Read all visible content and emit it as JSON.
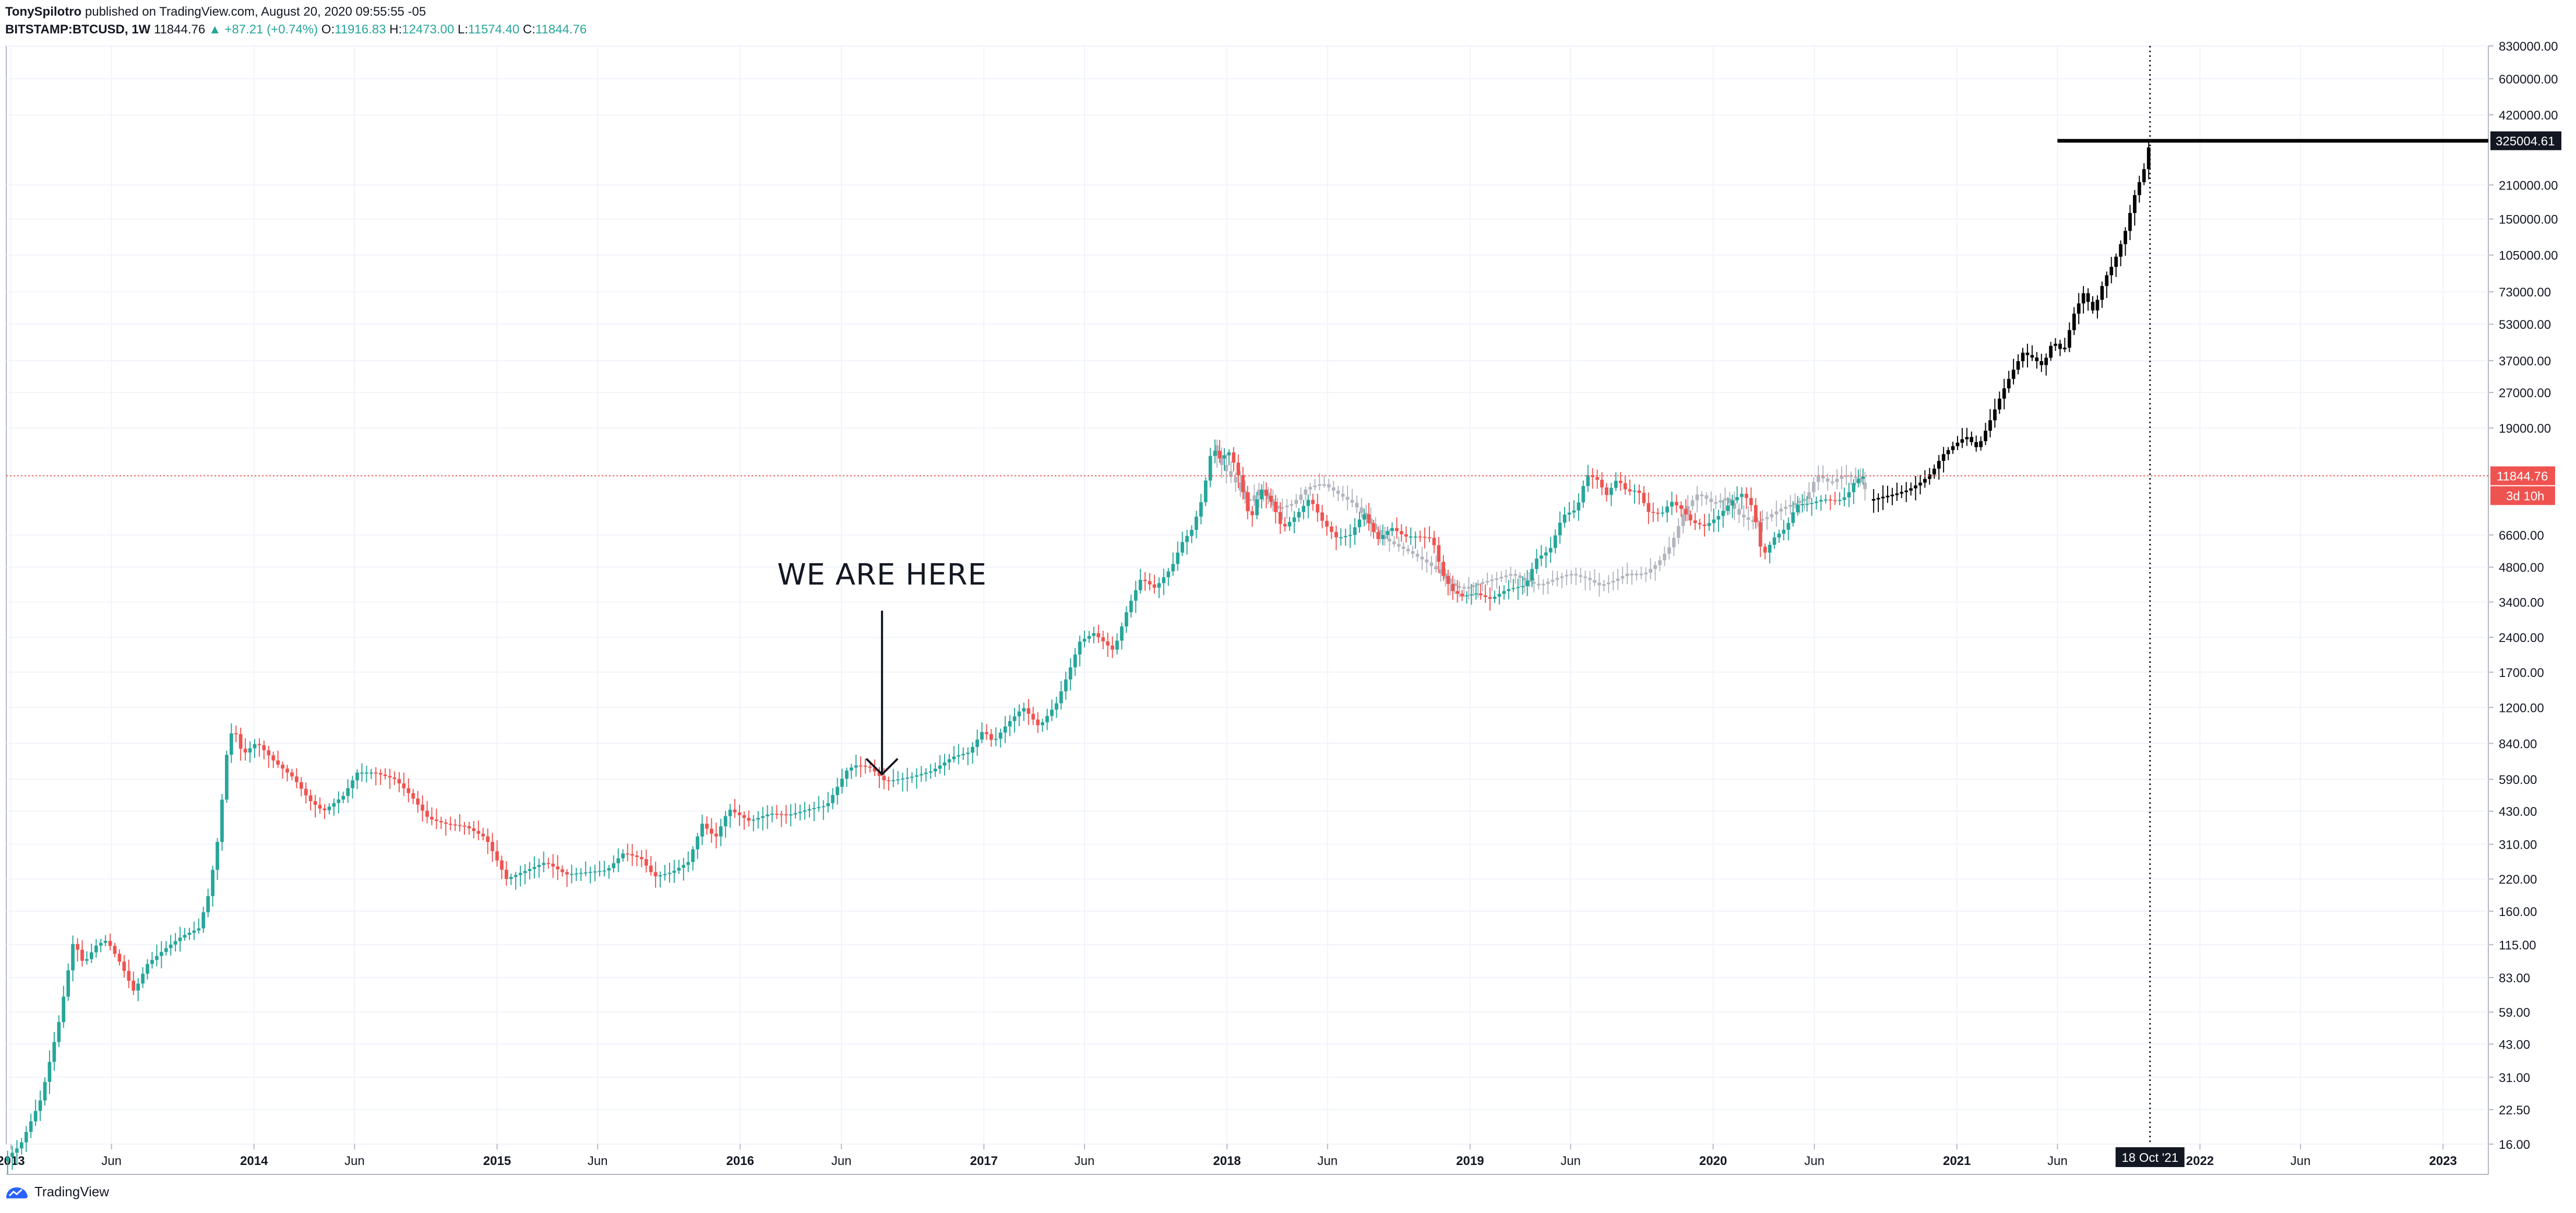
{
  "header": {
    "author": "TonySpilotro",
    "published": "published on TradingView.com, August 20, 2020 09:55:55 -05",
    "symbol": "BITSTAMP:BTCUSD, 1W",
    "last": "11844.76",
    "change_arrow": "▲",
    "change": "+87.21 (+0.74%)",
    "o_label": "O:",
    "o_value": "11916.83",
    "h_label": "H:",
    "h_value": "12473.00",
    "l_label": "L:",
    "l_value": "11574.40",
    "c_label": "C:",
    "c_value": "11844.76"
  },
  "footer": {
    "brand": "TradingView",
    "logo_icon": "tradingview-logo-icon"
  },
  "chart_data": {
    "type": "candlestick",
    "y_scale": "log",
    "ylim": [
      16,
      830000
    ],
    "y_ticks": [
      {
        "value": 16,
        "label": "16.00"
      },
      {
        "value": 22.5,
        "label": "22.50"
      },
      {
        "value": 31,
        "label": "31.00"
      },
      {
        "value": 43,
        "label": "43.00"
      },
      {
        "value": 59,
        "label": "59.00"
      },
      {
        "value": 83,
        "label": "83.00"
      },
      {
        "value": 115,
        "label": "115.00"
      },
      {
        "value": 160,
        "label": "160.00"
      },
      {
        "value": 220,
        "label": "220.00"
      },
      {
        "value": 310,
        "label": "310.00"
      },
      {
        "value": 430,
        "label": "430.00"
      },
      {
        "value": 590,
        "label": "590.00"
      },
      {
        "value": 840,
        "label": "840.00"
      },
      {
        "value": 1200,
        "label": "1200.00"
      },
      {
        "value": 1700,
        "label": "1700.00"
      },
      {
        "value": 2400,
        "label": "2400.00"
      },
      {
        "value": 3400,
        "label": "3400.00"
      },
      {
        "value": 4800,
        "label": "4800.00"
      },
      {
        "value": 6600,
        "label": "6600.00"
      },
      {
        "value": 19000,
        "label": "19000.00"
      },
      {
        "value": 27000,
        "label": "27000.00"
      },
      {
        "value": 37000,
        "label": "37000.00"
      },
      {
        "value": 53000,
        "label": "53000.00"
      },
      {
        "value": 73000,
        "label": "73000.00"
      },
      {
        "value": 105000,
        "label": "105000.00"
      },
      {
        "value": 150000,
        "label": "150000.00"
      },
      {
        "value": 210000,
        "label": "210000.00"
      },
      {
        "value": 420000,
        "label": "420000.00"
      },
      {
        "value": 600000,
        "label": "600000.00"
      },
      {
        "value": 830000,
        "label": "830000.00"
      }
    ],
    "x_ticks": [
      {
        "date": "2013-01-01",
        "label": "2013",
        "bold": true
      },
      {
        "date": "2013-06-01",
        "label": "Jun",
        "bold": false
      },
      {
        "date": "2014-01-01",
        "label": "2014",
        "bold": true
      },
      {
        "date": "2014-06-01",
        "label": "Jun",
        "bold": false
      },
      {
        "date": "2015-01-01",
        "label": "2015",
        "bold": true
      },
      {
        "date": "2015-06-01",
        "label": "Jun",
        "bold": false
      },
      {
        "date": "2016-01-01",
        "label": "2016",
        "bold": true
      },
      {
        "date": "2016-06-01",
        "label": "Jun",
        "bold": false
      },
      {
        "date": "2017-01-01",
        "label": "2017",
        "bold": true
      },
      {
        "date": "2017-06-01",
        "label": "Jun",
        "bold": false
      },
      {
        "date": "2018-01-01",
        "label": "2018",
        "bold": true
      },
      {
        "date": "2018-06-01",
        "label": "Jun",
        "bold": false
      },
      {
        "date": "2019-01-01",
        "label": "2019",
        "bold": true
      },
      {
        "date": "2019-06-01",
        "label": "Jun",
        "bold": false
      },
      {
        "date": "2020-01-01",
        "label": "2020",
        "bold": true
      },
      {
        "date": "2020-06-01",
        "label": "Jun",
        "bold": false
      },
      {
        "date": "2021-01-01",
        "label": "2021",
        "bold": true
      },
      {
        "date": "2021-06-01",
        "label": "Jun",
        "bold": false
      },
      {
        "date": "2022-01-01",
        "label": "2022",
        "bold": true
      },
      {
        "date": "2022-06-01",
        "label": "Jun",
        "bold": false
      },
      {
        "date": "2023-01-01",
        "label": "2023",
        "bold": true
      }
    ],
    "price_line": {
      "value": 11844.76,
      "label": "11844.76",
      "countdown": "3d 10h",
      "color": "#ef5350"
    },
    "target_line": {
      "value": 325004.61,
      "label": "325004.61",
      "start_date": "2021-06-01",
      "color": "#000000"
    },
    "vertical_marker": {
      "date": "2021-10-18",
      "label": "18 Oct '21"
    },
    "annotation": {
      "text": "WE ARE HERE",
      "date": "2016-08-01",
      "price": 600
    },
    "colors": {
      "up": "#26a69a",
      "down": "#ef5350",
      "projection": "#000000",
      "fractal": "#b2b5be",
      "grid": "#f0f3fa"
    },
    "series": [
      {
        "name": "BTCUSD",
        "style": "candles",
        "points": [
          [
            "2012-12-20",
            13.5
          ],
          [
            "2013-01-15",
            15.8
          ],
          [
            "2013-02-15",
            25
          ],
          [
            "2013-03-15",
            55
          ],
          [
            "2013-04-05",
            120
          ],
          [
            "2013-04-20",
            95
          ],
          [
            "2013-05-10",
            115
          ],
          [
            "2013-05-25",
            120
          ],
          [
            "2013-06-15",
            95
          ],
          [
            "2013-07-05",
            72
          ],
          [
            "2013-07-25",
            95
          ],
          [
            "2013-08-20",
            110
          ],
          [
            "2013-09-15",
            125
          ],
          [
            "2013-10-10",
            135
          ],
          [
            "2013-10-25",
            190
          ],
          [
            "2013-11-08",
            330
          ],
          [
            "2013-11-22",
            800
          ],
          [
            "2013-12-01",
            1000
          ],
          [
            "2013-12-15",
            750
          ],
          [
            "2014-01-05",
            850
          ],
          [
            "2014-02-01",
            700
          ],
          [
            "2014-03-01",
            600
          ],
          [
            "2014-03-25",
            480
          ],
          [
            "2014-04-15",
            430
          ],
          [
            "2014-05-15",
            500
          ],
          [
            "2014-06-05",
            630
          ],
          [
            "2014-07-01",
            630
          ],
          [
            "2014-08-01",
            590
          ],
          [
            "2014-08-25",
            500
          ],
          [
            "2014-09-20",
            400
          ],
          [
            "2014-10-15",
            380
          ],
          [
            "2014-11-15",
            370
          ],
          [
            "2014-12-15",
            330
          ],
          [
            "2015-01-15",
            220
          ],
          [
            "2015-02-15",
            240
          ],
          [
            "2015-03-15",
            260
          ],
          [
            "2015-04-15",
            230
          ],
          [
            "2015-05-15",
            235
          ],
          [
            "2015-06-15",
            240
          ],
          [
            "2015-07-10",
            285
          ],
          [
            "2015-08-05",
            270
          ],
          [
            "2015-08-25",
            225
          ],
          [
            "2015-09-20",
            235
          ],
          [
            "2015-10-15",
            260
          ],
          [
            "2015-11-05",
            380
          ],
          [
            "2015-11-25",
            330
          ],
          [
            "2015-12-15",
            440
          ],
          [
            "2016-01-15",
            390
          ],
          [
            "2016-02-15",
            420
          ],
          [
            "2016-03-15",
            415
          ],
          [
            "2016-04-15",
            440
          ],
          [
            "2016-05-10",
            455
          ],
          [
            "2016-06-10",
            650
          ],
          [
            "2016-06-25",
            680
          ],
          [
            "2016-07-15",
            660
          ],
          [
            "2016-08-05",
            580
          ],
          [
            "2016-08-20",
            585
          ],
          [
            "2016-09-15",
            605
          ],
          [
            "2016-10-15",
            640
          ],
          [
            "2016-11-15",
            735
          ],
          [
            "2016-12-10",
            770
          ],
          [
            "2016-12-31",
            960
          ],
          [
            "2017-01-15",
            850
          ],
          [
            "2017-02-05",
            1020
          ],
          [
            "2017-03-01",
            1200
          ],
          [
            "2017-03-25",
            990
          ],
          [
            "2017-04-20",
            1250
          ],
          [
            "2017-05-10",
            1750
          ],
          [
            "2017-05-25",
            2300
          ],
          [
            "2017-06-15",
            2500
          ],
          [
            "2017-07-15",
            2100
          ],
          [
            "2017-08-05",
            3200
          ],
          [
            "2017-08-25",
            4300
          ],
          [
            "2017-09-15",
            3900
          ],
          [
            "2017-10-10",
            4800
          ],
          [
            "2017-10-25",
            6100
          ],
          [
            "2017-11-10",
            7000
          ],
          [
            "2017-11-25",
            9500
          ],
          [
            "2017-12-10",
            16000
          ],
          [
            "2017-12-20",
            14000
          ],
          [
            "2018-01-05",
            15000
          ],
          [
            "2018-01-20",
            11500
          ],
          [
            "2018-02-05",
            7500
          ],
          [
            "2018-02-20",
            10500
          ],
          [
            "2018-03-10",
            9000
          ],
          [
            "2018-03-25",
            7000
          ],
          [
            "2018-04-15",
            8000
          ],
          [
            "2018-05-05",
            9500
          ],
          [
            "2018-05-25",
            7500
          ],
          [
            "2018-06-15",
            6400
          ],
          [
            "2018-07-05",
            6600
          ],
          [
            "2018-07-25",
            8200
          ],
          [
            "2018-08-15",
            6300
          ],
          [
            "2018-09-05",
            7100
          ],
          [
            "2018-09-25",
            6500
          ],
          [
            "2018-10-15",
            6500
          ],
          [
            "2018-11-05",
            6400
          ],
          [
            "2018-11-20",
            4500
          ],
          [
            "2018-12-05",
            3800
          ],
          [
            "2018-12-20",
            3600
          ],
          [
            "2019-01-10",
            3700
          ],
          [
            "2019-02-01",
            3500
          ],
          [
            "2019-02-25",
            3850
          ],
          [
            "2019-03-25",
            4000
          ],
          [
            "2019-04-10",
            5200
          ],
          [
            "2019-05-01",
            5700
          ],
          [
            "2019-05-20",
            8000
          ],
          [
            "2019-06-10",
            8500
          ],
          [
            "2019-06-25",
            12000
          ],
          [
            "2019-07-10",
            11500
          ],
          [
            "2019-07-25",
            9800
          ],
          [
            "2019-08-10",
            11500
          ],
          [
            "2019-08-25",
            10100
          ],
          [
            "2019-09-10",
            10300
          ],
          [
            "2019-09-25",
            8300
          ],
          [
            "2019-10-15",
            8100
          ],
          [
            "2019-10-30",
            9200
          ],
          [
            "2019-11-15",
            8500
          ],
          [
            "2019-11-30",
            7500
          ],
          [
            "2019-12-20",
            7200
          ],
          [
            "2020-01-10",
            8000
          ],
          [
            "2020-01-30",
            9300
          ],
          [
            "2020-02-15",
            10000
          ],
          [
            "2020-03-01",
            8600
          ],
          [
            "2020-03-15",
            5300
          ],
          [
            "2020-04-01",
            6400
          ],
          [
            "2020-04-20",
            7100
          ],
          [
            "2020-05-05",
            8900
          ],
          [
            "2020-05-25",
            9000
          ],
          [
            "2020-06-15",
            9400
          ],
          [
            "2020-07-05",
            9200
          ],
          [
            "2020-07-20",
            9700
          ],
          [
            "2020-08-01",
            11300
          ],
          [
            "2020-08-15",
            11844.76
          ]
        ]
      },
      {
        "name": "Projection",
        "style": "bars",
        "points": [
          [
            "2020-08-22",
            9300
          ],
          [
            "2020-09-10",
            9600
          ],
          [
            "2020-10-01",
            9900
          ],
          [
            "2020-10-20",
            10300
          ],
          [
            "2020-11-10",
            11200
          ],
          [
            "2020-11-25",
            12300
          ],
          [
            "2020-12-10",
            14500
          ],
          [
            "2020-12-25",
            15800
          ],
          [
            "2021-01-15",
            17500
          ],
          [
            "2021-02-01",
            15500
          ],
          [
            "2021-02-20",
            20500
          ],
          [
            "2021-03-10",
            27000
          ],
          [
            "2021-03-25",
            33000
          ],
          [
            "2021-04-10",
            40000
          ],
          [
            "2021-04-25",
            38000
          ],
          [
            "2021-05-10",
            35000
          ],
          [
            "2021-05-25",
            45000
          ],
          [
            "2021-06-10",
            40000
          ],
          [
            "2021-06-25",
            58000
          ],
          [
            "2021-07-10",
            72000
          ],
          [
            "2021-07-25",
            60000
          ],
          [
            "2021-08-10",
            82000
          ],
          [
            "2021-08-25",
            98000
          ],
          [
            "2021-09-10",
            130000
          ],
          [
            "2021-09-25",
            190000
          ],
          [
            "2021-10-10",
            250000
          ],
          [
            "2021-10-18",
            325004.61
          ]
        ]
      },
      {
        "name": "Fractal",
        "style": "bars",
        "points": [
          [
            "2017-12-10",
            16000
          ],
          [
            "2017-12-25",
            13000
          ],
          [
            "2018-01-15",
            11000
          ],
          [
            "2018-02-01",
            9000
          ],
          [
            "2018-02-20",
            10500
          ],
          [
            "2018-03-15",
            8500
          ],
          [
            "2018-04-10",
            9000
          ],
          [
            "2018-05-01",
            10500
          ],
          [
            "2018-05-25",
            11000
          ],
          [
            "2018-06-15",
            10000
          ],
          [
            "2018-07-10",
            9000
          ],
          [
            "2018-08-01",
            7600
          ],
          [
            "2018-08-20",
            6500
          ],
          [
            "2018-09-10",
            6000
          ],
          [
            "2018-10-01",
            5600
          ],
          [
            "2018-10-25",
            5100
          ],
          [
            "2018-11-15",
            4600
          ],
          [
            "2018-12-05",
            4000
          ],
          [
            "2018-12-25",
            3900
          ],
          [
            "2019-01-15",
            4100
          ],
          [
            "2019-02-10",
            4300
          ],
          [
            "2019-03-05",
            4500
          ],
          [
            "2019-03-25",
            4200
          ],
          [
            "2019-04-15",
            4000
          ],
          [
            "2019-05-10",
            4300
          ],
          [
            "2019-06-01",
            4500
          ],
          [
            "2019-06-25",
            4300
          ],
          [
            "2019-07-15",
            4000
          ],
          [
            "2019-08-05",
            4200
          ],
          [
            "2019-08-25",
            4500
          ],
          [
            "2019-09-20",
            4500
          ],
          [
            "2019-10-10",
            5000
          ],
          [
            "2019-10-30",
            6000
          ],
          [
            "2019-11-20",
            8500
          ],
          [
            "2019-12-10",
            10000
          ],
          [
            "2020-01-01",
            9000
          ],
          [
            "2020-01-20",
            9500
          ],
          [
            "2020-02-10",
            8000
          ],
          [
            "2020-03-01",
            7500
          ],
          [
            "2020-03-20",
            7800
          ],
          [
            "2020-04-10",
            8500
          ],
          [
            "2020-05-01",
            9000
          ],
          [
            "2020-05-20",
            9500
          ],
          [
            "2020-06-05",
            12000
          ],
          [
            "2020-06-25",
            11000
          ],
          [
            "2020-07-15",
            12000
          ],
          [
            "2020-08-05",
            11500
          ],
          [
            "2020-08-20",
            10000
          ]
        ]
      }
    ]
  }
}
